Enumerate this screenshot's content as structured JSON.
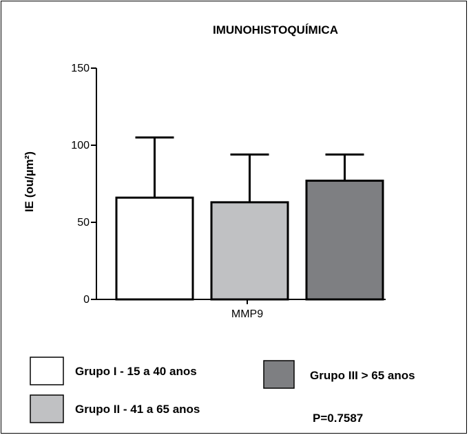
{
  "chart_data": {
    "type": "bar",
    "title": "IMUNOHISTOQUÍMICA",
    "ylabel": "IE (ou/µm²)",
    "xlabel": "",
    "categories": [
      "MMP9"
    ],
    "ylim": [
      0,
      150
    ],
    "yticks": [
      0,
      50,
      100,
      150
    ],
    "grid": false,
    "series": [
      {
        "name": "Grupo I - 15 a 40 anos",
        "value": 66,
        "error": 39,
        "color": "#ffffff"
      },
      {
        "name": "Grupo II - 41 a 65 anos",
        "value": 63,
        "error": 31,
        "color": "#c0c1c3"
      },
      {
        "name": "Grupo III > 65 anos",
        "value": 77,
        "error": 17,
        "color": "#7e7f82"
      }
    ],
    "annotation": "P=0.7587"
  }
}
